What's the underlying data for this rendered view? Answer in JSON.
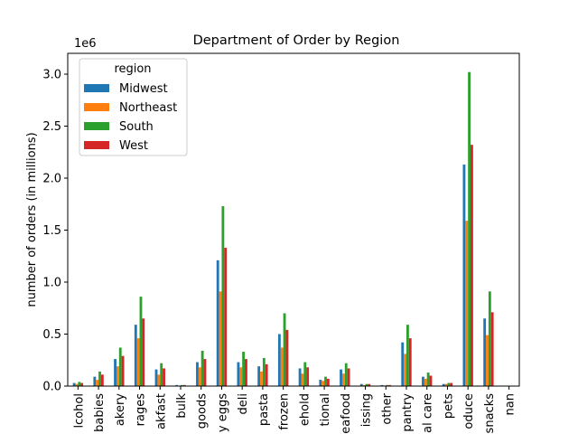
{
  "chart_data": {
    "type": "bar",
    "title": "Department of Order by Region",
    "y_label": "number of orders (in millions)",
    "y_offset_label": "1e6",
    "legend_title": "region",
    "legend_position": "upper left",
    "categories": [
      "lcohol",
      "babies",
      "akery",
      "rages",
      "akfast",
      "bulk",
      "goods",
      "y eggs",
      "deli",
      "pasta",
      "frozen",
      "ehold",
      "tional",
      "eafood",
      "issing",
      "other",
      "pantry",
      "al care",
      "pets",
      "oduce",
      "snacks",
      "nan"
    ],
    "series": [
      {
        "name": "Midwest",
        "color": "#1f77b4",
        "values": [
          0.03,
          0.09,
          0.26,
          0.59,
          0.16,
          0.01,
          0.23,
          1.21,
          0.23,
          0.19,
          0.5,
          0.17,
          0.06,
          0.16,
          0.02,
          0.01,
          0.42,
          0.09,
          0.02,
          2.13,
          0.65,
          null
        ]
      },
      {
        "name": "Northeast",
        "color": "#ff7f0e",
        "values": [
          0.02,
          0.06,
          0.19,
          0.46,
          0.11,
          0.005,
          0.18,
          0.91,
          0.18,
          0.14,
          0.37,
          0.12,
          0.05,
          0.12,
          0.01,
          0.005,
          0.31,
          0.07,
          0.02,
          1.59,
          0.49,
          null
        ]
      },
      {
        "name": "South",
        "color": "#2ca02c",
        "values": [
          0.04,
          0.14,
          0.37,
          0.86,
          0.22,
          0.01,
          0.34,
          1.73,
          0.33,
          0.27,
          0.7,
          0.23,
          0.09,
          0.22,
          0.02,
          0.01,
          0.59,
          0.13,
          0.03,
          3.02,
          0.91,
          null
        ]
      },
      {
        "name": "West",
        "color": "#d62728",
        "values": [
          0.03,
          0.11,
          0.29,
          0.65,
          0.17,
          0.01,
          0.26,
          1.33,
          0.26,
          0.21,
          0.54,
          0.18,
          0.07,
          0.17,
          0.02,
          0.01,
          0.46,
          0.1,
          0.03,
          2.32,
          0.71,
          null
        ]
      }
    ],
    "ylim": [
      0,
      3.2
    ],
    "yticks": [
      {
        "value": 0,
        "label": "0.0"
      },
      0.5,
      {
        "value": 1,
        "label": "1.0"
      },
      1.5,
      {
        "value": 2,
        "label": "2.0"
      },
      2.5,
      {
        "value": 3,
        "label": "3.0"
      }
    ],
    "grid": false
  }
}
